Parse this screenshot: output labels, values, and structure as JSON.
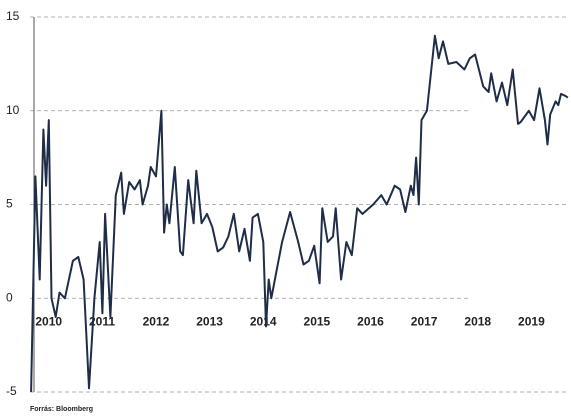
{
  "chart_data": {
    "type": "line",
    "source": "Forrás: Bloomberg",
    "xlim": [
      2009.9,
      2019.95
    ],
    "xticks": [
      2010,
      2011,
      2012,
      2013,
      2014,
      2015,
      2016,
      2017,
      2018,
      2019
    ],
    "ylim": [
      -5,
      15
    ],
    "yticks": [
      -5,
      0,
      5,
      10,
      15
    ],
    "grid": true,
    "x": [
      2009.92,
      2010.0,
      2010.08,
      2010.15,
      2010.2,
      2010.25,
      2010.3,
      2010.38,
      2010.45,
      2010.55,
      2010.7,
      2010.8,
      2010.9,
      2011.0,
      2011.1,
      2011.2,
      2011.25,
      2011.3,
      2011.4,
      2011.5,
      2011.6,
      2011.65,
      2011.75,
      2011.85,
      2011.95,
      2012.0,
      2012.1,
      2012.15,
      2012.25,
      2012.35,
      2012.4,
      2012.45,
      2012.5,
      2012.6,
      2012.7,
      2012.75,
      2012.85,
      2012.95,
      2013.0,
      2013.1,
      2013.2,
      2013.3,
      2013.4,
      2013.5,
      2013.6,
      2013.7,
      2013.8,
      2013.9,
      2014.0,
      2014.05,
      2014.15,
      2014.25,
      2014.3,
      2014.35,
      2014.4,
      2014.5,
      2014.6,
      2014.75,
      2014.9,
      2015.0,
      2015.1,
      2015.2,
      2015.3,
      2015.35,
      2015.45,
      2015.55,
      2015.6,
      2015.7,
      2015.8,
      2015.9,
      2016.0,
      2016.1,
      2016.3,
      2016.45,
      2016.55,
      2016.7,
      2016.8,
      2016.9,
      2017.0,
      2017.05,
      2017.1,
      2017.15,
      2017.2,
      2017.3,
      2017.45,
      2017.52,
      2017.6,
      2017.7,
      2017.85,
      2018.0,
      2018.1,
      2018.2,
      2018.35,
      2018.45,
      2018.5,
      2018.6,
      2018.7,
      2018.8,
      2018.9,
      2019.0,
      2019.05,
      2019.2,
      2019.3,
      2019.4,
      2019.5,
      2019.55,
      2019.6,
      2019.7,
      2019.75,
      2019.8,
      2019.88,
      2019.93
    ],
    "series": [
      {
        "color": "#1f2e48",
        "values": [
          -5,
          6.5,
          1,
          9,
          6,
          9.5,
          0,
          -1,
          0.3,
          0,
          2,
          2.2,
          1,
          -4.8,
          0,
          3,
          -0.8,
          4.5,
          -1,
          5.5,
          6.7,
          4.5,
          6.2,
          5.8,
          6.3,
          5,
          6,
          7,
          6.5,
          10,
          3.5,
          5,
          4,
          7,
          2.5,
          2.3,
          6.3,
          4,
          6.8,
          4,
          4.5,
          3.8,
          2.5,
          2.7,
          3.3,
          4.5,
          2.5,
          3.7,
          2,
          4.3,
          4.5,
          3,
          -1.5,
          1,
          0,
          1.5,
          3,
          4.6,
          3,
          1.8,
          2,
          2.8,
          0.8,
          4.8,
          3,
          3.3,
          4.8,
          1,
          3,
          2.3,
          4.8,
          4.5,
          5,
          5.5,
          5,
          6,
          5.8,
          4.6,
          6,
          5.5,
          7.5,
          5,
          9.5,
          10,
          14,
          12.8,
          13.7,
          12.5,
          12.6,
          12.2,
          12.8,
          13,
          11.3,
          11,
          12,
          10.5,
          11.5,
          10.3,
          12.2,
          9.3,
          9.4,
          10,
          9.5,
          11.2,
          9.5,
          8.2,
          9.8,
          10.5,
          10.3,
          10.9,
          10.8,
          10.7
        ]
      }
    ]
  }
}
